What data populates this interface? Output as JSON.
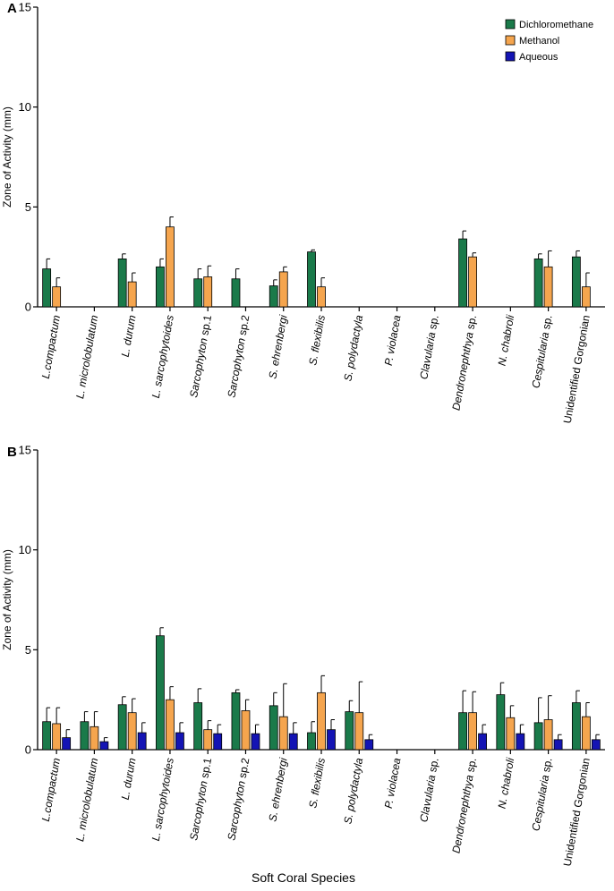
{
  "chart_data": [
    {
      "panel": "A",
      "type": "bar",
      "ylabel": "Zone of Activity (mm)",
      "xlabel": "",
      "ylim": [
        0,
        15
      ],
      "yticks": [
        0,
        5,
        10,
        15
      ],
      "legend_position": "top-right",
      "categories": [
        "L.compactum",
        "L. microlobulatum",
        "L. durum",
        "L. sarcophytoides",
        "Sarcophyton sp.1",
        "Sarcophyton sp.2",
        "S. ehrenbergi",
        "S. flexibilis",
        "S. polydactyla",
        "P. violacea",
        "Clavularia sp.",
        "Dendronephthya sp.",
        "N. chabroli",
        "Cespitularia sp.",
        "Unidentified Gorgonian"
      ],
      "series": [
        {
          "name": "Dichloromethane",
          "color": "#1a7a4a",
          "values": [
            1.9,
            0,
            2.4,
            2.0,
            1.4,
            1.4,
            1.05,
            2.75,
            0,
            0,
            0,
            3.4,
            0,
            2.4,
            2.5
          ],
          "errors": [
            0.5,
            0,
            0.25,
            0.4,
            0.5,
            0.5,
            0.3,
            0.1,
            0,
            0,
            0,
            0.4,
            0,
            0.25,
            0.3
          ]
        },
        {
          "name": "Methanol",
          "color": "#f5a54e",
          "values": [
            1.0,
            0,
            1.25,
            4.0,
            1.5,
            0,
            1.75,
            1.0,
            0,
            0,
            0,
            2.5,
            0,
            2.0,
            1.0
          ],
          "errors": [
            0.45,
            0,
            0.45,
            0.5,
            0.55,
            0,
            0.25,
            0.45,
            0,
            0,
            0,
            0.2,
            0,
            0.8,
            0.7
          ]
        },
        {
          "name": "Aqueous",
          "color": "#1414b4",
          "values": [
            0,
            0,
            0,
            0,
            0,
            0,
            0,
            0,
            0,
            0,
            0,
            0,
            0,
            0,
            0
          ],
          "errors": [
            0,
            0,
            0,
            0,
            0,
            0,
            0,
            0,
            0,
            0,
            0,
            0,
            0,
            0,
            0
          ]
        }
      ]
    },
    {
      "panel": "B",
      "type": "bar",
      "ylabel": "Zone of Activity (mm)",
      "xlabel": "Soft Coral Species",
      "ylim": [
        0,
        15
      ],
      "yticks": [
        0,
        5,
        10,
        15
      ],
      "categories": [
        "L.compactum",
        "L. microlobulatum",
        "L. durum",
        "L. sarcophytoides",
        "Sarcophyton sp.1",
        "Sarcophyton sp.2",
        "S. ehrenbergi",
        "S. flexibilis",
        "S. polydactyla",
        "P. violacea",
        "Clavularia sp.",
        "Dendronephthya sp.",
        "N. chabroli",
        "Cespitularia sp.",
        "Unidentified Gorgonian"
      ],
      "series": [
        {
          "name": "Dichloromethane",
          "color": "#1a7a4a",
          "values": [
            1.4,
            1.4,
            2.25,
            5.7,
            2.35,
            2.85,
            2.2,
            0.85,
            1.9,
            0,
            0,
            1.85,
            2.75,
            1.35,
            2.35
          ],
          "errors": [
            0.7,
            0.5,
            0.4,
            0.4,
            0.7,
            0.15,
            0.65,
            0.55,
            0.55,
            0,
            0,
            1.1,
            0.6,
            1.25,
            0.6
          ]
        },
        {
          "name": "Methanol",
          "color": "#f5a54e",
          "values": [
            1.3,
            1.15,
            1.85,
            2.5,
            1.0,
            1.95,
            1.65,
            2.85,
            1.85,
            0,
            0,
            1.85,
            1.6,
            1.5,
            1.65
          ],
          "errors": [
            0.8,
            0.75,
            0.7,
            0.65,
            0.45,
            0.55,
            1.65,
            0.85,
            1.55,
            0,
            0,
            1.05,
            0.6,
            1.2,
            0.7
          ]
        },
        {
          "name": "Aqueous",
          "color": "#1414b4",
          "values": [
            0.6,
            0.4,
            0.85,
            0.85,
            0.8,
            0.8,
            0.8,
            1.0,
            0.5,
            0,
            0,
            0.8,
            0.8,
            0.5,
            0.5
          ],
          "errors": [
            0.4,
            0.2,
            0.5,
            0.5,
            0.45,
            0.45,
            0.55,
            0.5,
            0.25,
            0,
            0,
            0.45,
            0.45,
            0.25,
            0.25
          ]
        }
      ]
    }
  ]
}
